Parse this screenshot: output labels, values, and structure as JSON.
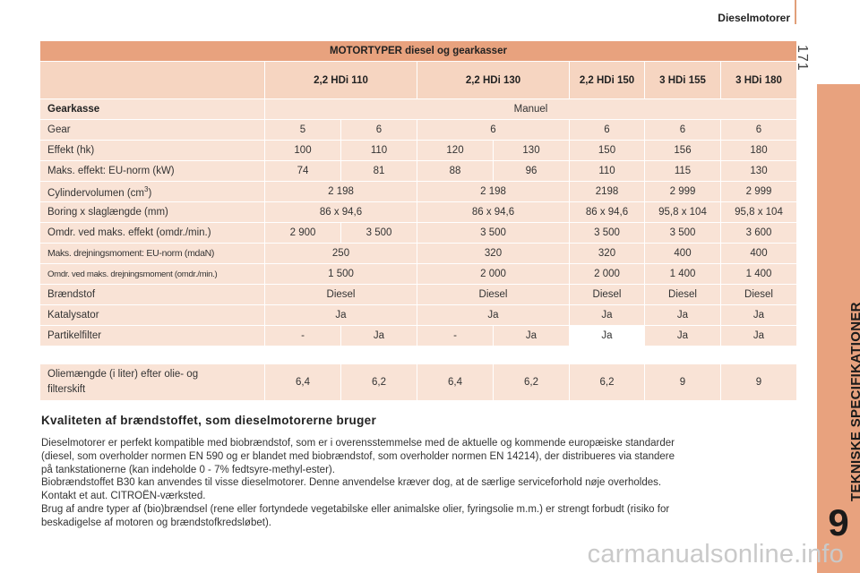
{
  "header": {
    "section": "Dieselmotorer",
    "page_number": "171"
  },
  "side_tab": {
    "label": "TEKNISKE SPECIFIKATIONER",
    "chapter": "9"
  },
  "table": {
    "title": "MOTORTYPER diesel og gearkasser",
    "columns": [
      "2,2 HDi 110",
      "2,2 HDi 130",
      "2,2 HDi 150",
      "3 HDi 155",
      "3 HDi 180"
    ],
    "gearkasse": {
      "label": "Gearkasse",
      "value": "Manuel"
    },
    "gear": {
      "label": "Gear",
      "values": [
        "5",
        "6",
        "6",
        "6",
        "6",
        "6"
      ]
    },
    "effekt": {
      "label": "Effekt (hk)",
      "values": [
        "100",
        "110",
        "120",
        "130",
        "150",
        "156",
        "180"
      ]
    },
    "maks_effekt": {
      "label": "Maks. effekt: EU-norm (kW)",
      "values": [
        "74",
        "81",
        "88",
        "96",
        "110",
        "115",
        "130"
      ]
    },
    "cylinder": {
      "label": "Cylindervolumen (cm",
      "sup": "3",
      "label_end": ")",
      "values": [
        "2 198",
        "2 198",
        "2198",
        "2 999",
        "2 999"
      ]
    },
    "boring": {
      "label": "Boring x slaglængde (mm)",
      "values": [
        "86 x 94,6",
        "86 x 94,6",
        "86 x 94,6",
        "95,8 x 104",
        "95,8 x 104"
      ]
    },
    "omdr_effekt": {
      "label": "Omdr. ved maks. effekt (omdr./min.)",
      "values": [
        "2 900",
        "3 500",
        "3 500",
        "3 500",
        "3 500",
        "3 600"
      ]
    },
    "maks_moment": {
      "label": "Maks. drejningsmoment: EU-norm (mdaN)",
      "values": [
        "250",
        "320",
        "320",
        "400",
        "400"
      ]
    },
    "omdr_moment": {
      "label": "Omdr. ved maks. drejningsmoment (omdr./min.)",
      "values": [
        "1 500",
        "2 000",
        "2 000",
        "1 400",
        "1 400"
      ]
    },
    "braendstof": {
      "label": "Brændstof",
      "values": [
        "Diesel",
        "Diesel",
        "Diesel",
        "Diesel",
        "Diesel"
      ]
    },
    "katalysator": {
      "label": "Katalysator",
      "values": [
        "Ja",
        "Ja",
        "Ja",
        "Ja",
        "Ja"
      ]
    },
    "partikelfilter": {
      "label": "Partikelfilter",
      "values": [
        "-",
        "Ja",
        "-",
        "Ja",
        "Ja",
        "Ja",
        "Ja"
      ]
    }
  },
  "oil": {
    "label_line1": "Oliemængde (i liter) efter olie- og",
    "label_line2": "filterskift",
    "values": [
      "6,4",
      "6,2",
      "6,4",
      "6,2",
      "6,2",
      "9",
      "9"
    ]
  },
  "section": {
    "heading": "Kvaliteten af brændstoffet, som dieselmotorerne bruger",
    "lines": [
      "Dieselmotorer er perfekt kompatible med biobrændstof, som er i overensstemmelse med de aktuelle og kommende europæiske standarder",
      "(diesel, som overholder normen EN 590 og er blandet med biobrændstof, som overholder normen EN 14214), der distribueres via standere",
      "på tankstationerne (kan indeholde 0 - 7% fedtsyre-methyl-ester).",
      "Biobrændstoffet B30 kan anvendes til visse dieselmotorer. Denne anvendelse kræver dog, at de særlige serviceforhold nøje overholdes.",
      "Kontakt et aut. CITROËN-værksted.",
      "Brug af andre typer af (bio)brændsel (rene eller fortyndede vegetabilske eller animalske olier, fyringsolie m.m.) er strengt forbudt (risiko for",
      "beskadigelse af motoren og brændstofkredsløbet)."
    ]
  },
  "watermark": "carmanualsonline.info"
}
